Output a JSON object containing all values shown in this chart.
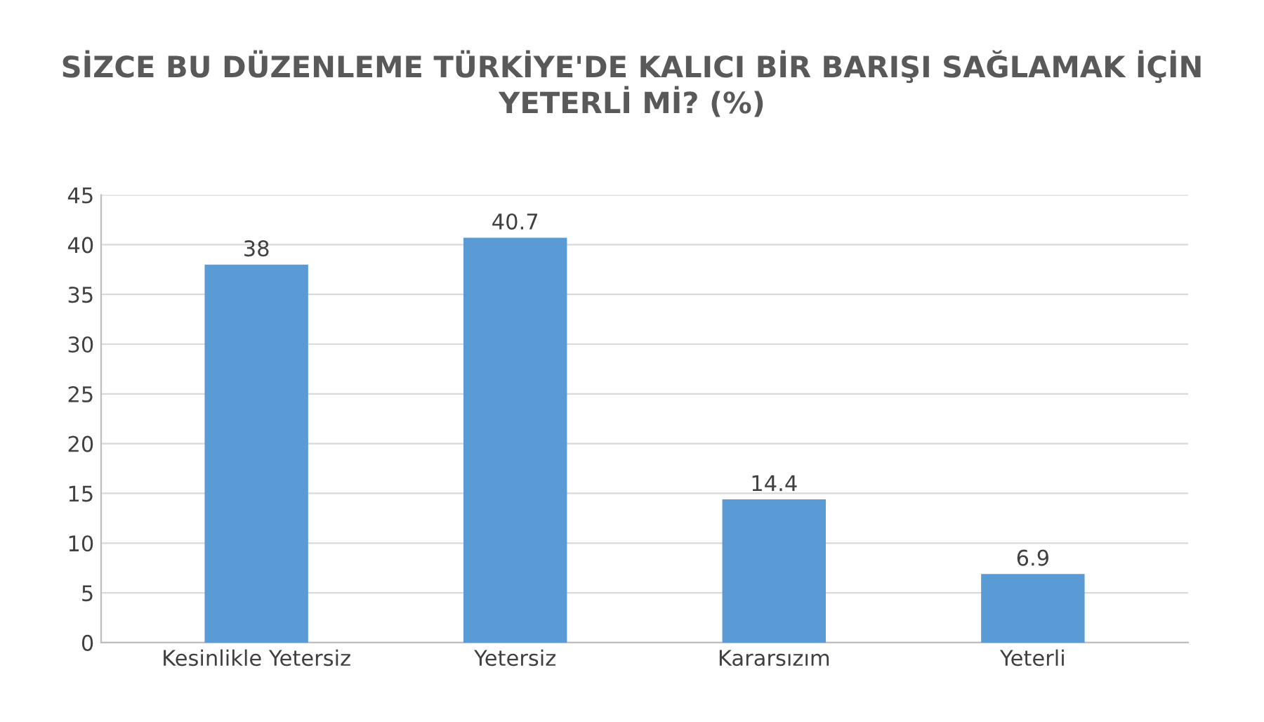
{
  "chart_data": {
    "type": "bar",
    "title": "SİZCE BU DÜZENLEME TÜRKİYE'DE KALICI BİR BARIŞI SAĞLAMAK İÇİN YETERLİ Mİ? (%)",
    "categories": [
      "Kesinlikle Yetersiz",
      "Yetersiz",
      "Kararsızım",
      "Yeterli"
    ],
    "values": [
      38,
      40.7,
      14.4,
      6.9
    ],
    "color": "#5b9bd5",
    "ylim": [
      0,
      45
    ],
    "yticks": [
      0,
      5,
      10,
      15,
      20,
      25,
      30,
      35,
      40,
      45
    ],
    "grid": "y",
    "data_labels": true
  }
}
